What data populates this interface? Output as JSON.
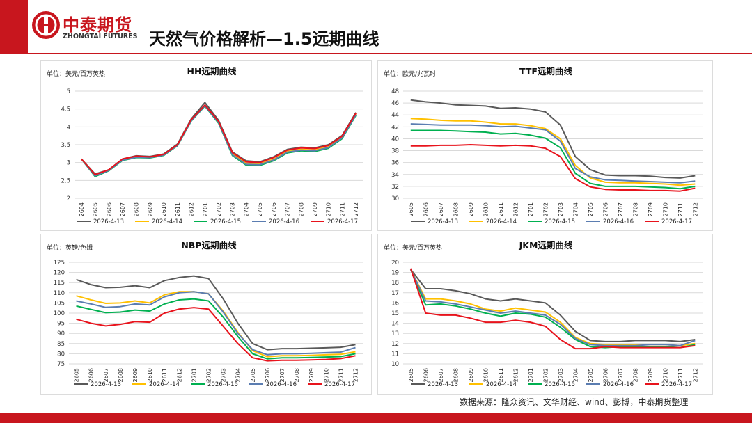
{
  "header": {
    "logo_cn": "中泰期货",
    "logo_en": "ZHONGTAI FUTURES",
    "title": "天然气价格解析—1.5远期曲线",
    "brand_color": "#c8161e"
  },
  "source": "数据来源：隆众资讯、文华财经、wind、彭博，中泰期货整理",
  "legend_dates": [
    "2026-4-13",
    "2026-4-14",
    "2026-4-15",
    "2026-4-16",
    "2026-4-17"
  ],
  "series_colors": [
    "#595959",
    "#ffc000",
    "#00b050",
    "#5b7db1",
    "#e8131c"
  ],
  "chart_data": [
    {
      "type": "line",
      "title": "HH远期曲线",
      "unit": "单位：美元/百万英热",
      "categories": [
        "2604",
        "2605",
        "2606",
        "2607",
        "2608",
        "2609",
        "2610",
        "2611",
        "2612",
        "2701",
        "2702",
        "2703",
        "2704",
        "2705",
        "2706",
        "2707",
        "2708",
        "2709",
        "2710",
        "2711",
        "2712"
      ],
      "ylim": [
        2,
        5
      ],
      "yticks": [
        "2",
        "2.5",
        "3",
        "3.5",
        "4",
        "4.5",
        "5"
      ],
      "series": [
        {
          "name": "2026-4-13",
          "values": [
            3.1,
            2.68,
            2.8,
            3.1,
            3.19,
            3.17,
            3.24,
            3.52,
            4.22,
            4.68,
            4.18,
            3.3,
            3.05,
            3.02,
            3.16,
            3.37,
            3.43,
            3.41,
            3.5,
            3.76,
            4.4
          ]
        },
        {
          "name": "2026-4-14",
          "values": [
            3.1,
            2.64,
            2.79,
            3.09,
            3.17,
            3.15,
            3.22,
            3.49,
            4.18,
            4.6,
            4.13,
            3.24,
            2.98,
            2.96,
            3.09,
            3.31,
            3.37,
            3.35,
            3.44,
            3.71,
            4.35
          ]
        },
        {
          "name": "2026-4-15",
          "values": [
            3.1,
            2.61,
            2.77,
            3.06,
            3.14,
            3.13,
            3.2,
            3.47,
            4.16,
            4.58,
            4.1,
            3.2,
            2.93,
            2.92,
            3.05,
            3.27,
            3.33,
            3.31,
            3.4,
            3.67,
            4.32
          ]
        },
        {
          "name": "2026-4-16",
          "values": [
            3.1,
            2.63,
            2.78,
            3.07,
            3.15,
            3.14,
            3.21,
            3.48,
            4.17,
            4.59,
            4.12,
            3.22,
            2.95,
            2.94,
            3.07,
            3.29,
            3.35,
            3.33,
            3.42,
            3.69,
            4.34
          ]
        },
        {
          "name": "2026-4-17",
          "values": [
            3.1,
            2.66,
            2.8,
            3.1,
            3.18,
            3.16,
            3.23,
            3.5,
            4.2,
            4.61,
            4.15,
            3.28,
            3.02,
            3.0,
            3.14,
            3.35,
            3.41,
            3.39,
            3.48,
            3.74,
            4.38
          ]
        }
      ]
    },
    {
      "type": "line",
      "title": "TTF远期曲线",
      "unit": "单位：欧元/兆瓦时",
      "categories": [
        "2605",
        "2606",
        "2607",
        "2608",
        "2609",
        "2610",
        "2611",
        "2612",
        "2701",
        "2702",
        "2703",
        "2704",
        "2705",
        "2706",
        "2707",
        "2708",
        "2709",
        "2710",
        "2711",
        "2712"
      ],
      "ylim": [
        30,
        48
      ],
      "yticks": [
        "30",
        "32",
        "34",
        "36",
        "38",
        "40",
        "42",
        "44",
        "46",
        "48"
      ],
      "series": [
        {
          "name": "2026-4-13",
          "values": [
            46.5,
            46.2,
            46.0,
            45.7,
            45.6,
            45.5,
            45.1,
            45.2,
            45.0,
            44.5,
            42.3,
            37.0,
            34.8,
            33.9,
            33.8,
            33.8,
            33.7,
            33.5,
            33.4,
            33.8
          ]
        },
        {
          "name": "2026-4-14",
          "values": [
            43.4,
            43.3,
            43.1,
            43.0,
            43.0,
            42.8,
            42.5,
            42.5,
            42.2,
            41.7,
            40.0,
            35.5,
            33.4,
            32.7,
            32.6,
            32.6,
            32.5,
            32.4,
            32.2,
            32.4
          ]
        },
        {
          "name": "2026-4-15",
          "values": [
            41.4,
            41.4,
            41.4,
            41.3,
            41.2,
            41.1,
            40.8,
            40.9,
            40.6,
            40.1,
            38.5,
            34.2,
            32.5,
            32.0,
            32.0,
            32.0,
            31.9,
            31.8,
            31.6,
            32.0
          ]
        },
        {
          "name": "2026-4-16",
          "values": [
            42.5,
            42.4,
            42.3,
            42.3,
            42.3,
            42.2,
            42.0,
            42.1,
            41.8,
            41.5,
            39.6,
            35.0,
            33.6,
            33.1,
            33.0,
            32.9,
            32.8,
            32.7,
            32.6,
            32.9
          ]
        },
        {
          "name": "2026-4-17",
          "values": [
            38.8,
            38.8,
            38.9,
            38.9,
            39.0,
            38.9,
            38.8,
            38.9,
            38.8,
            38.4,
            37.0,
            33.3,
            31.9,
            31.5,
            31.4,
            31.4,
            31.3,
            31.3,
            31.2,
            31.7
          ]
        }
      ]
    },
    {
      "type": "line",
      "title": "NBP远期曲线",
      "unit": "单位：英镑/色姆",
      "categories": [
        "2605",
        "2606",
        "2607",
        "2608",
        "2609",
        "2610",
        "2611",
        "2612",
        "2701",
        "2702",
        "2703",
        "2704",
        "2705",
        "2706",
        "2707",
        "2708",
        "2709",
        "2710",
        "2711",
        "2712"
      ],
      "ylim": [
        75,
        125
      ],
      "yticks": [
        "75",
        "80",
        "85",
        "90",
        "95",
        "100",
        "105",
        "110",
        "115",
        "120",
        "125"
      ],
      "series": [
        {
          "name": "2026-4-13",
          "values": [
            116.5,
            114.0,
            112.5,
            112.7,
            113.5,
            112.5,
            116.0,
            117.5,
            118.3,
            117.0,
            107.0,
            95.0,
            85.0,
            82.0,
            82.5,
            82.5,
            82.7,
            82.9,
            83.2,
            84.5
          ]
        },
        {
          "name": "2026-4-14",
          "values": [
            108.5,
            106.5,
            104.8,
            105.0,
            106.0,
            105.0,
            109.0,
            110.5,
            110.5,
            109.5,
            101.0,
            90.5,
            81.5,
            78.5,
            79.0,
            79.0,
            79.2,
            79.5,
            79.7,
            81.0
          ]
        },
        {
          "name": "2026-4-15",
          "values": [
            103.5,
            101.8,
            100.2,
            100.5,
            101.5,
            101.0,
            104.5,
            106.5,
            107.0,
            106.0,
            98.0,
            88.5,
            80.0,
            77.5,
            78.0,
            78.0,
            78.2,
            78.4,
            78.6,
            80.0
          ]
        },
        {
          "name": "2026-4-16",
          "values": [
            106.0,
            104.5,
            102.8,
            103.2,
            104.5,
            104.0,
            108.0,
            110.0,
            110.5,
            109.5,
            100.5,
            90.0,
            82.0,
            79.5,
            80.0,
            80.0,
            80.2,
            80.5,
            80.8,
            83.0
          ]
        },
        {
          "name": "2026-4-17",
          "values": [
            97.0,
            95.0,
            93.7,
            94.5,
            95.8,
            95.5,
            100.0,
            102.0,
            102.7,
            102.0,
            93.5,
            85.0,
            78.0,
            76.5,
            76.8,
            76.8,
            77.0,
            77.2,
            77.6,
            79.0
          ]
        }
      ]
    },
    {
      "type": "line",
      "title": "JKM远期曲线",
      "unit": "单位：美元/百万英热",
      "categories": [
        "2605",
        "2606",
        "2607",
        "2608",
        "2609",
        "2610",
        "2611",
        "2612",
        "2701",
        "2702",
        "2703",
        "2704",
        "2705",
        "2706",
        "2707",
        "2708",
        "2709",
        "2710",
        "2711",
        "2712"
      ],
      "ylim": [
        10,
        20
      ],
      "yticks": [
        "10",
        "11",
        "12",
        "13",
        "14",
        "15",
        "16",
        "17",
        "18",
        "19",
        "20"
      ],
      "series": [
        {
          "name": "2026-4-13",
          "values": [
            19.3,
            17.4,
            17.4,
            17.2,
            16.9,
            16.4,
            16.2,
            16.4,
            16.2,
            16.0,
            14.8,
            13.2,
            12.3,
            12.2,
            12.2,
            12.3,
            12.3,
            12.3,
            12.2,
            12.4
          ]
        },
        {
          "name": "2026-4-14",
          "values": [
            19.3,
            16.4,
            16.4,
            16.2,
            15.9,
            15.4,
            15.2,
            15.5,
            15.3,
            15.1,
            14.1,
            12.6,
            12.0,
            11.9,
            11.9,
            11.9,
            11.9,
            11.9,
            11.8,
            12.0
          ]
        },
        {
          "name": "2026-4-15",
          "values": [
            19.3,
            15.8,
            15.9,
            15.7,
            15.4,
            15.0,
            14.7,
            15.0,
            14.9,
            14.6,
            13.6,
            12.4,
            11.7,
            11.6,
            11.7,
            11.7,
            11.7,
            11.7,
            11.6,
            11.9
          ]
        },
        {
          "name": "2026-4-16",
          "values": [
            19.3,
            16.2,
            16.1,
            15.9,
            15.6,
            15.3,
            15.0,
            15.2,
            15.0,
            14.8,
            13.9,
            12.5,
            11.9,
            11.8,
            11.8,
            11.8,
            11.9,
            11.9,
            11.8,
            12.3
          ]
        },
        {
          "name": "2026-4-17",
          "values": [
            19.4,
            15.0,
            14.8,
            14.8,
            14.5,
            14.1,
            14.1,
            14.3,
            14.1,
            13.7,
            12.4,
            11.5,
            11.5,
            11.7,
            11.6,
            11.6,
            11.6,
            11.6,
            11.6,
            11.8
          ]
        }
      ]
    }
  ]
}
